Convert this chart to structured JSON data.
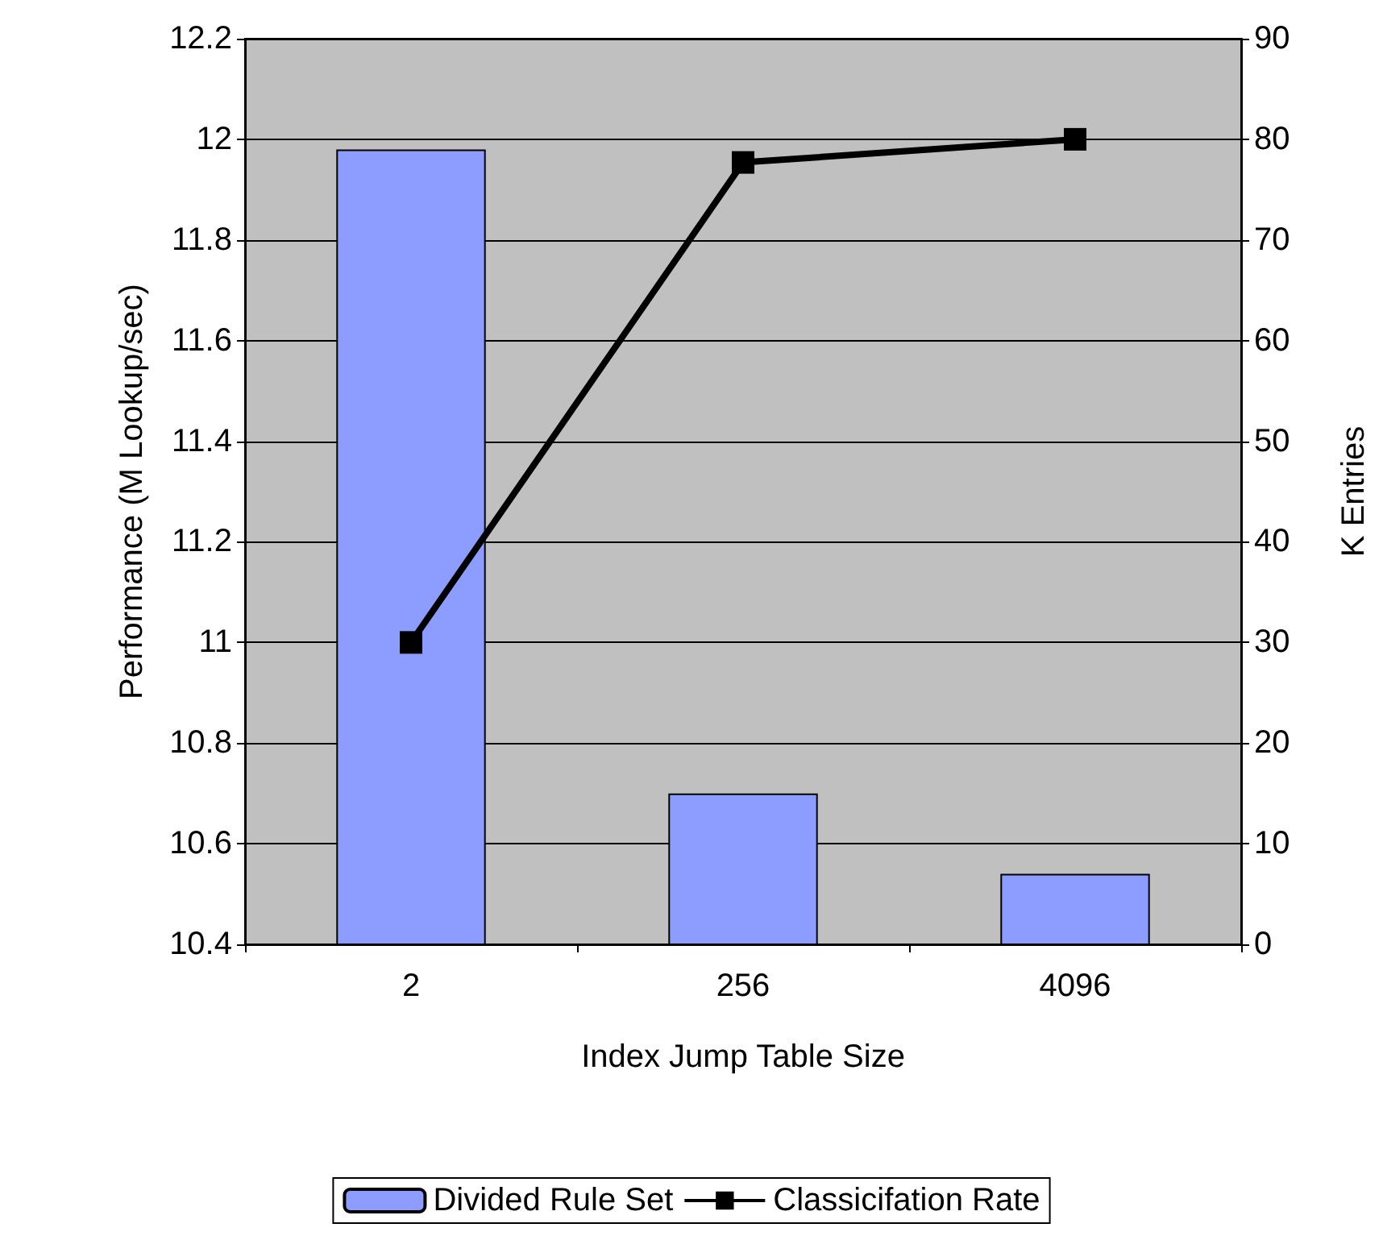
{
  "chart_data": {
    "type": "bar",
    "xlabel": "Index Jump Table Size",
    "ylabel": "Performance (M Lookup/sec)",
    "y2label": "K Entries",
    "categories": [
      "2",
      "256",
      "4096"
    ],
    "series": [
      {
        "name": "Divided Rule Set",
        "color": "#8c9cff",
        "values": [
          11.98,
          10.7,
          10.54
        ]
      },
      {
        "name": "Classicifation Rate",
        "type": "line",
        "axis": "y2",
        "color": "#000000",
        "values": [
          30,
          77.7,
          80
        ],
        "marker": "square"
      }
    ],
    "ylim": [
      10.4,
      12.2
    ],
    "yticks": [
      10.4,
      10.6,
      10.8,
      11,
      11.2,
      11.4,
      11.6,
      11.8,
      12,
      12.2
    ],
    "y2lim": [
      0,
      90
    ],
    "y2ticks": [
      0,
      10,
      20,
      30,
      40,
      50,
      60,
      70,
      80,
      90
    ],
    "grid": "y",
    "legend": "bottom"
  }
}
